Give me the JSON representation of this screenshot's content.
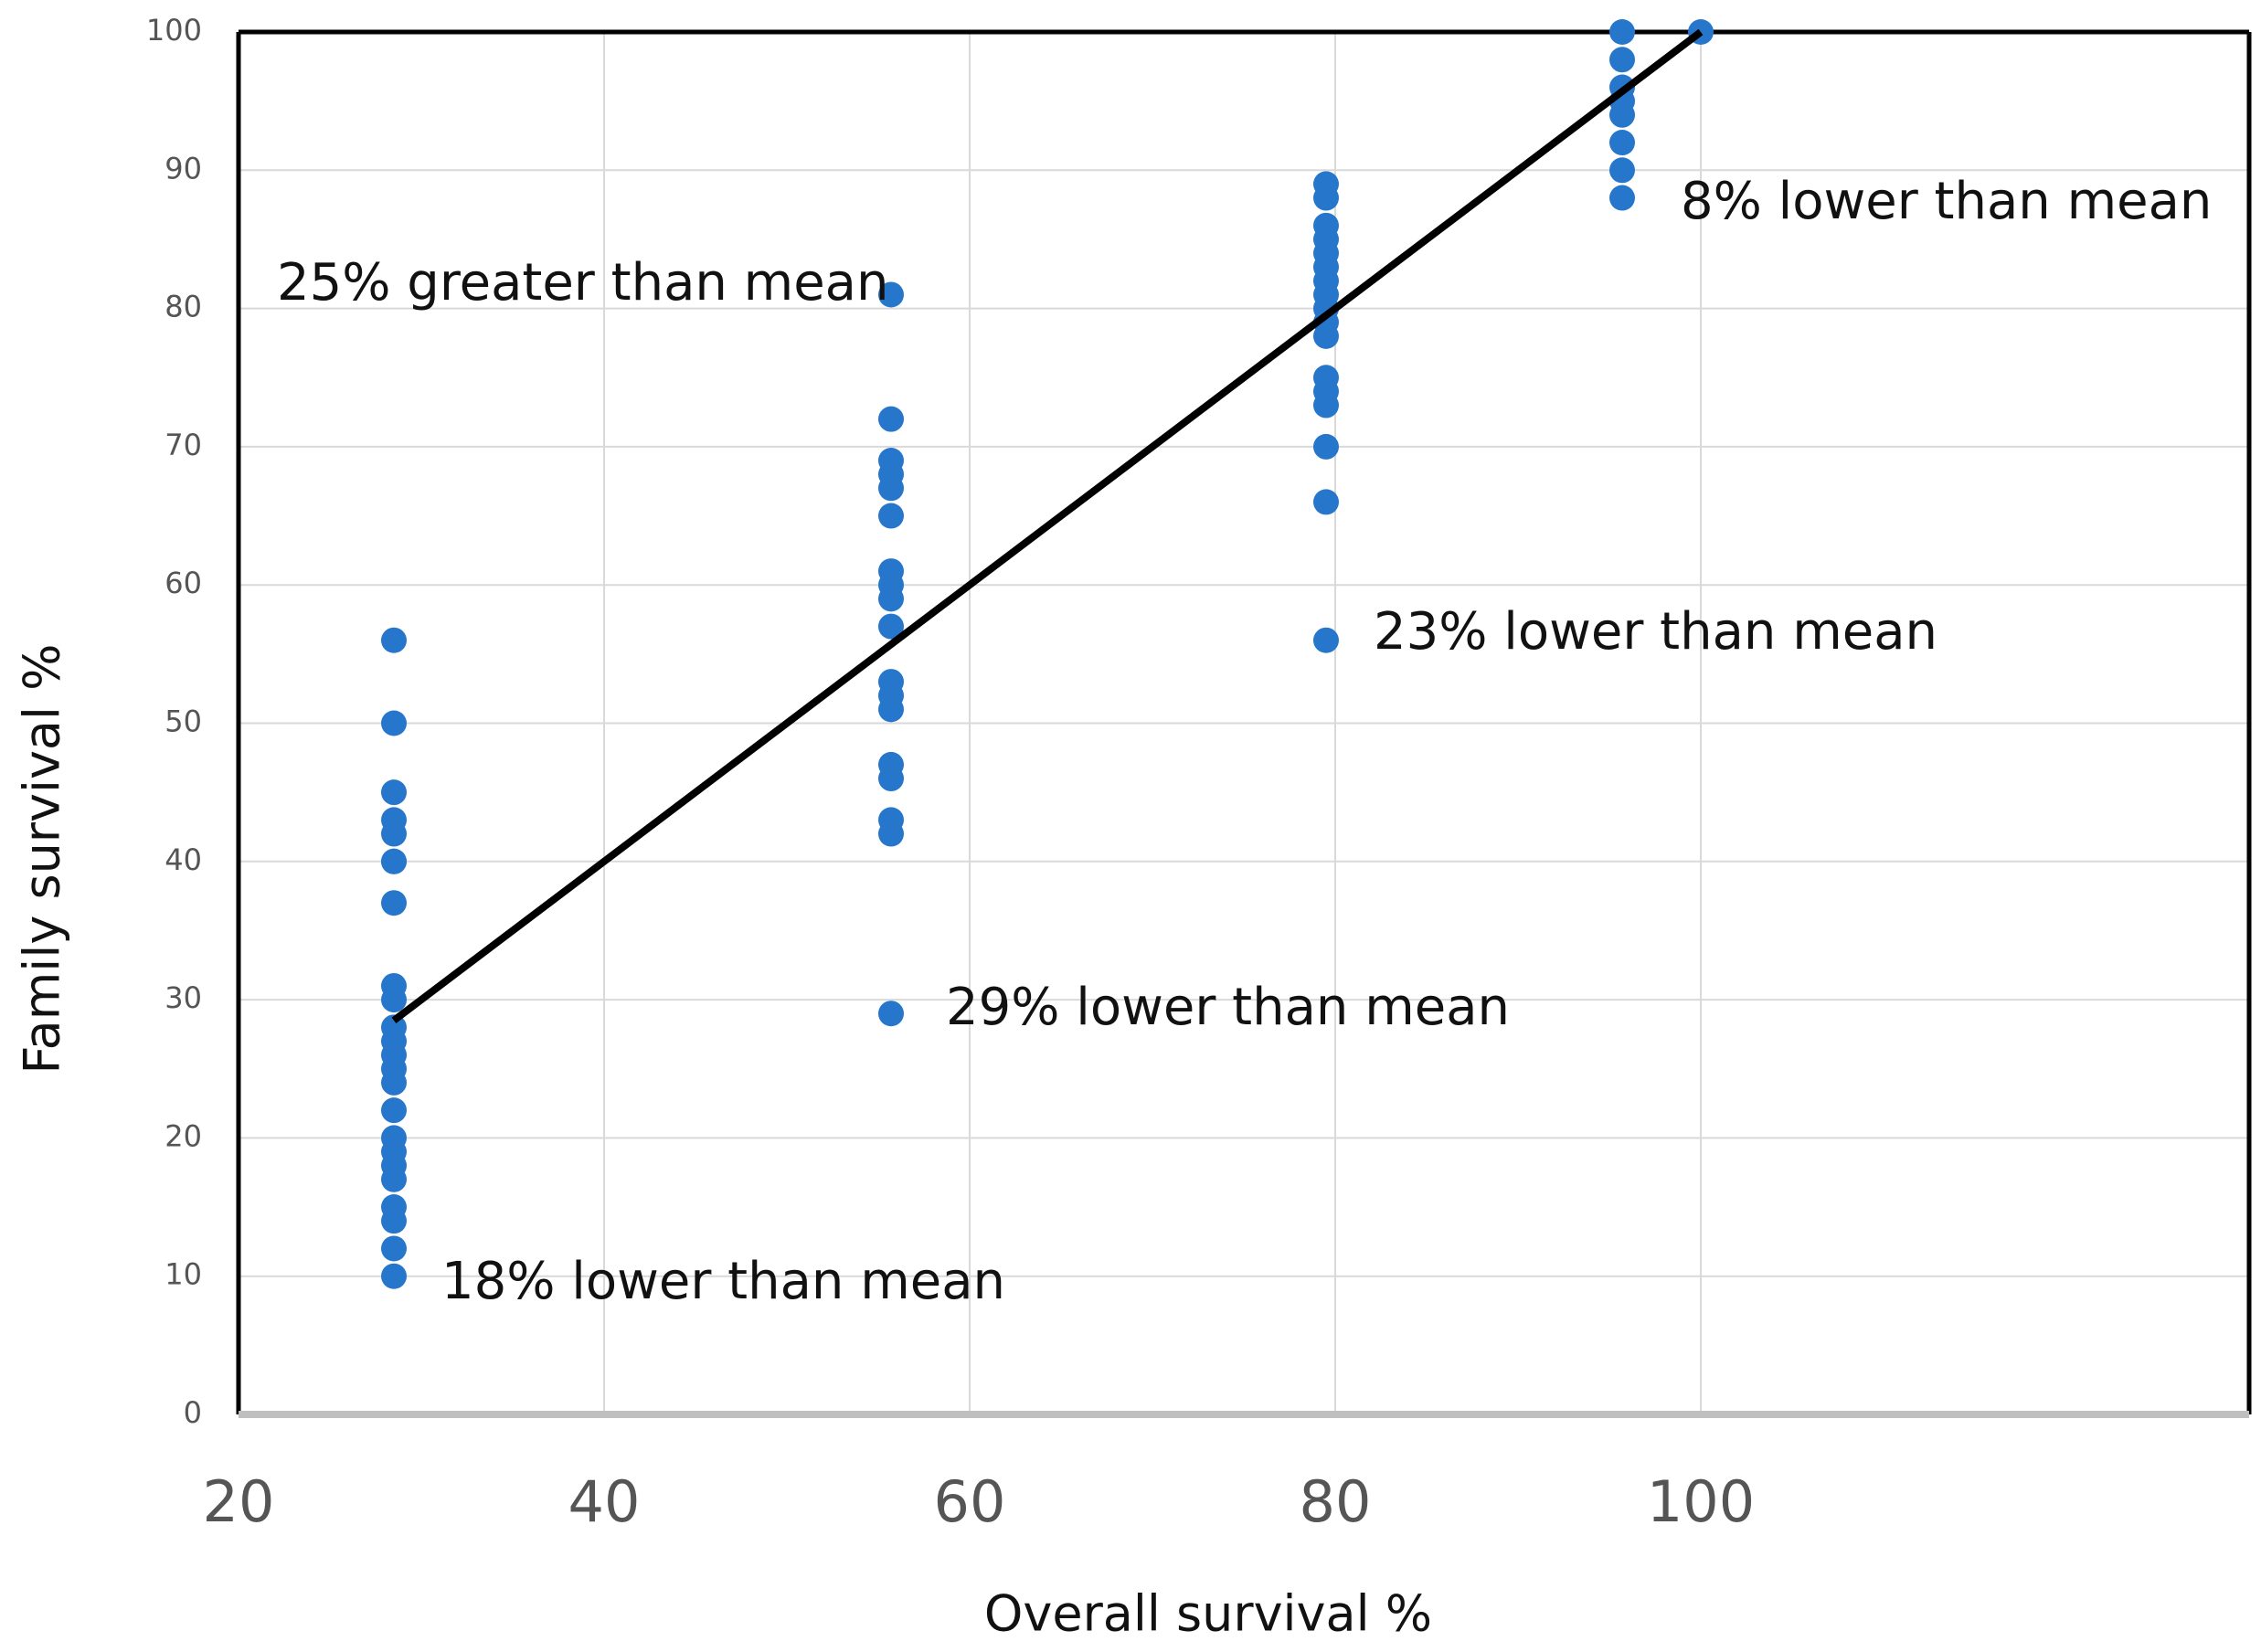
{
  "chart_data": {
    "type": "scatter",
    "x_label": "Overall survival %",
    "y_label": "Family survival %",
    "xlim": [
      20,
      130
    ],
    "xticks": [
      20,
      40,
      60,
      80,
      100
    ],
    "ylim": [
      0,
      100
    ],
    "yticks": [
      0,
      10,
      20,
      30,
      40,
      50,
      60,
      70,
      80,
      90,
      100
    ],
    "grid": true,
    "series": [
      {
        "color": "#2677cc",
        "x": [
          28.5,
          28.5,
          28.5,
          28.5,
          28.5,
          28.5,
          28.5,
          28.5,
          28.5,
          28.5,
          28.5,
          28.5,
          28.5,
          28.5,
          28.5,
          28.5,
          28.5,
          28.5,
          28.5,
          28.5,
          28.5,
          28.5,
          28.5,
          28.5,
          55.7,
          55.7,
          55.7,
          55.7,
          55.7,
          55.7,
          55.7,
          55.7,
          55.7,
          55.7,
          55.7,
          55.7,
          55.7,
          55.7,
          55.7,
          55.7,
          55.7,
          55.7,
          79.5,
          79.5,
          79.5,
          79.5,
          79.5,
          79.5,
          79.5,
          79.5,
          79.5,
          79.5,
          79.5,
          79.5,
          79.5,
          79.5,
          79.5,
          79.5,
          79.5,
          95.7,
          95.7,
          95.7,
          95.7,
          95.7,
          95.7,
          95.7,
          95.7,
          100
        ],
        "values": [
          56,
          50,
          45,
          43,
          42,
          40,
          40,
          37,
          31,
          30,
          28,
          27,
          26,
          25,
          24,
          22,
          20,
          19,
          18,
          17,
          15,
          14,
          12,
          10,
          81,
          72,
          69,
          68,
          67,
          65,
          61,
          60,
          59,
          57,
          53,
          52,
          51,
          47,
          46,
          43,
          42,
          29,
          89,
          88,
          86,
          85,
          84,
          83,
          82,
          81,
          80,
          79,
          78,
          75,
          74,
          73,
          70,
          66,
          56,
          100,
          98,
          96,
          95,
          94,
          92,
          90,
          88,
          100
        ]
      }
    ],
    "fit_line": {
      "color": "#000000",
      "x": [
        28.5,
        100
      ],
      "values": [
        28.5,
        100
      ]
    },
    "annotations": [
      "25% greater than mean",
      "8% lower than mean",
      "23% lower than mean",
      "29% lower than mean",
      "18% lower than mean"
    ]
  }
}
